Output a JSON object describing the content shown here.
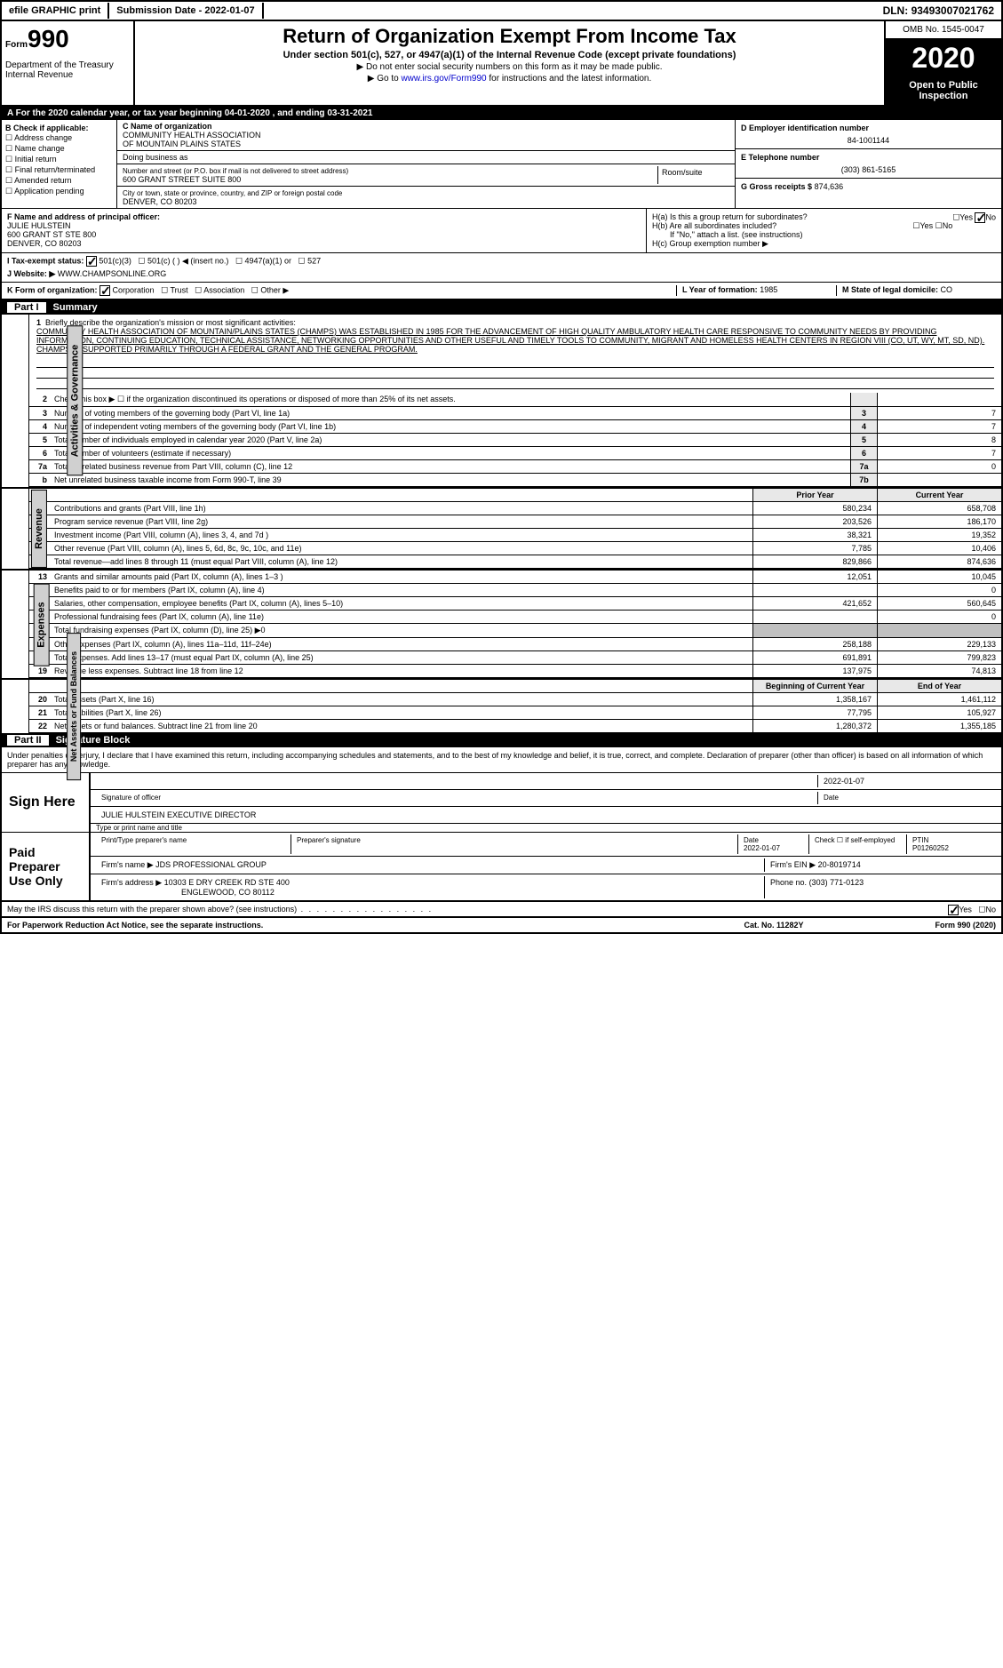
{
  "topbar": {
    "efile": "efile GRAPHIC print",
    "subdate_label": "Submission Date - ",
    "subdate": "2022-01-07",
    "dln_label": "DLN: ",
    "dln": "93493007021762"
  },
  "header": {
    "form_small": "Form",
    "form_num": "990",
    "dept": "Department of the Treasury\nInternal Revenue",
    "title": "Return of Organization Exempt From Income Tax",
    "subtitle": "Under section 501(c), 527, or 4947(a)(1) of the Internal Revenue Code (except private foundations)",
    "arrow1": "▶ Do not enter social security numbers on this form as it may be made public.",
    "arrow2_pre": "▶ Go to ",
    "arrow2_link": "www.irs.gov/Form990",
    "arrow2_post": " for instructions and the latest information.",
    "omb": "OMB No. 1545-0047",
    "year": "2020",
    "open": "Open to Public Inspection"
  },
  "row_a": "A  For the 2020 calendar year, or tax year beginning 04-01-2020    , and ending 03-31-2021",
  "section_b": {
    "label": "B Check if applicable:",
    "opts": [
      "Address change",
      "Name change",
      "Initial return",
      "Final return/terminated",
      "Amended return",
      "Application pending"
    ]
  },
  "section_c": {
    "name_label": "C Name of organization",
    "name1": "COMMUNITY HEALTH ASSOCIATION",
    "name2": "OF MOUNTAIN PLAINS STATES",
    "dba_label": "Doing business as",
    "addr_label": "Number and street (or P.O. box if mail is not delivered to street address)",
    "addr": "600 GRANT STREET SUITE 800",
    "room_label": "Room/suite",
    "city_label": "City or town, state or province, country, and ZIP or foreign postal code",
    "city": "DENVER, CO  80203"
  },
  "section_d": {
    "label": "D Employer identification number",
    "value": "84-1001144"
  },
  "section_e": {
    "label": "E Telephone number",
    "value": "(303) 861-5165"
  },
  "section_g": {
    "label": "G Gross receipts $",
    "value": "874,636"
  },
  "section_f": {
    "label": "F  Name and address of principal officer:",
    "name": "JULIE HULSTEIN",
    "addr1": "600 GRANT ST STE 800",
    "addr2": "DENVER, CO  80203"
  },
  "section_h": {
    "ha": "H(a)  Is this a group return for subordinates?",
    "hb": "H(b)  Are all subordinates included?",
    "hb_note": "If \"No,\" attach a list. (see instructions)",
    "hc": "H(c)  Group exemption number ▶"
  },
  "row_i": {
    "label": "I    Tax-exempt status:",
    "opts": [
      "501(c)(3)",
      "501(c) (  ) ◀ (insert no.)",
      "4947(a)(1) or",
      "527"
    ]
  },
  "row_j": {
    "label": "J   Website: ▶",
    "value": "WWW.CHAMPSONLINE.ORG"
  },
  "row_k": {
    "label": "K Form of organization:",
    "opts": [
      "Corporation",
      "Trust",
      "Association",
      "Other ▶"
    ],
    "l_label": "L Year of formation:",
    "l_val": "1985",
    "m_label": "M State of legal domicile:",
    "m_val": "CO"
  },
  "part1": {
    "label": "Part I",
    "title": "Summary"
  },
  "mission": {
    "num": "1",
    "label": "Briefly describe the organization's mission or most significant activities:",
    "text": "COMMUNITY HEALTH ASSOCIATION OF MOUNTAIN/PLAINS STATES (CHAMPS) WAS ESTABLISHED IN 1985 FOR THE ADVANCEMENT OF HIGH QUALITY AMBULATORY HEALTH CARE RESPONSIVE TO COMMUNITY NEEDS BY PROVIDING INFORMATION, CONTINUING EDUCATION, TECHNICAL ASSISTANCE, NETWORKING OPPORTUNITIES AND OTHER USEFUL AND TIMELY TOOLS TO COMMUNITY, MIGRANT AND HOMELESS HEALTH CENTERS IN REGION VIII (CO, UT, WY, MT, SD, ND). CHAMPS IS SUPPORTED PRIMARILY THROUGH A FEDERAL GRANT AND THE GENERAL PROGRAM."
  },
  "vtabs": {
    "gov": "Activities & Governance",
    "rev": "Revenue",
    "exp": "Expenses",
    "net": "Net Assets or Fund Balances"
  },
  "gov_lines": [
    {
      "n": "2",
      "d": "Check this box ▶ ☐ if the organization discontinued its operations or disposed of more than 25% of its net assets.",
      "box": "",
      "v": ""
    },
    {
      "n": "3",
      "d": "Number of voting members of the governing body (Part VI, line 1a)",
      "box": "3",
      "v": "7"
    },
    {
      "n": "4",
      "d": "Number of independent voting members of the governing body (Part VI, line 1b)",
      "box": "4",
      "v": "7"
    },
    {
      "n": "5",
      "d": "Total number of individuals employed in calendar year 2020 (Part V, line 2a)",
      "box": "5",
      "v": "8"
    },
    {
      "n": "6",
      "d": "Total number of volunteers (estimate if necessary)",
      "box": "6",
      "v": "7"
    },
    {
      "n": "7a",
      "d": "Total unrelated business revenue from Part VIII, column (C), line 12",
      "box": "7a",
      "v": "0"
    },
    {
      "n": "b",
      "d": "Net unrelated business taxable income from Form 990-T, line 39",
      "box": "7b",
      "v": ""
    }
  ],
  "rev_hdr": {
    "prior": "Prior Year",
    "curr": "Current Year"
  },
  "rev_lines": [
    {
      "n": "8",
      "d": "Contributions and grants (Part VIII, line 1h)",
      "p": "580,234",
      "c": "658,708"
    },
    {
      "n": "9",
      "d": "Program service revenue (Part VIII, line 2g)",
      "p": "203,526",
      "c": "186,170"
    },
    {
      "n": "10",
      "d": "Investment income (Part VIII, column (A), lines 3, 4, and 7d )",
      "p": "38,321",
      "c": "19,352"
    },
    {
      "n": "11",
      "d": "Other revenue (Part VIII, column (A), lines 5, 6d, 8c, 9c, 10c, and 11e)",
      "p": "7,785",
      "c": "10,406"
    },
    {
      "n": "12",
      "d": "Total revenue—add lines 8 through 11 (must equal Part VIII, column (A), line 12)",
      "p": "829,866",
      "c": "874,636"
    }
  ],
  "exp_lines": [
    {
      "n": "13",
      "d": "Grants and similar amounts paid (Part IX, column (A), lines 1–3 )",
      "p": "12,051",
      "c": "10,045"
    },
    {
      "n": "14",
      "d": "Benefits paid to or for members (Part IX, column (A), line 4)",
      "p": "",
      "c": "0"
    },
    {
      "n": "15",
      "d": "Salaries, other compensation, employee benefits (Part IX, column (A), lines 5–10)",
      "p": "421,652",
      "c": "560,645"
    },
    {
      "n": "16a",
      "d": "Professional fundraising fees (Part IX, column (A), line 11e)",
      "p": "",
      "c": "0"
    },
    {
      "n": "b",
      "d": "Total fundraising expenses (Part IX, column (D), line 25) ▶0",
      "p": "shade",
      "c": "shade"
    },
    {
      "n": "17",
      "d": "Other expenses (Part IX, column (A), lines 11a–11d, 11f–24e)",
      "p": "258,188",
      "c": "229,133"
    },
    {
      "n": "18",
      "d": "Total expenses. Add lines 13–17 (must equal Part IX, column (A), line 25)",
      "p": "691,891",
      "c": "799,823"
    },
    {
      "n": "19",
      "d": "Revenue less expenses. Subtract line 18 from line 12",
      "p": "137,975",
      "c": "74,813"
    }
  ],
  "net_hdr": {
    "prior": "Beginning of Current Year",
    "curr": "End of Year"
  },
  "net_lines": [
    {
      "n": "20",
      "d": "Total assets (Part X, line 16)",
      "p": "1,358,167",
      "c": "1,461,112"
    },
    {
      "n": "21",
      "d": "Total liabilities (Part X, line 26)",
      "p": "77,795",
      "c": "105,927"
    },
    {
      "n": "22",
      "d": "Net assets or fund balances. Subtract line 21 from line 20",
      "p": "1,280,372",
      "c": "1,355,185"
    }
  ],
  "part2": {
    "label": "Part II",
    "title": "Signature Block"
  },
  "sig": {
    "decl": "Under penalties of perjury, I declare that I have examined this return, including accompanying schedules and statements, and to the best of my knowledge and belief, it is true, correct, and complete. Declaration of preparer (other than officer) is based on all information of which preparer has any knowledge.",
    "sign_label": "Sign Here",
    "sig_officer": "Signature of officer",
    "sig_date": "2022-01-07",
    "date_label": "Date",
    "name_title": "JULIE HULSTEIN  EXECUTIVE DIRECTOR",
    "type_label": "Type or print name and title",
    "paid_label": "Paid Preparer Use Only",
    "prep_name_label": "Print/Type preparer's name",
    "prep_sig_label": "Preparer's signature",
    "prep_date": "2022-01-07",
    "check_self": "Check ☐ if self-employed",
    "ptin_label": "PTIN",
    "ptin": "P01260252",
    "firm_name_label": "Firm's name    ▶",
    "firm_name": "JDS PROFESSIONAL GROUP",
    "firm_ein_label": "Firm's EIN ▶",
    "firm_ein": "20-8019714",
    "firm_addr_label": "Firm's address ▶",
    "firm_addr1": "10303 E DRY CREEK RD STE 400",
    "firm_addr2": "ENGLEWOOD, CO  80112",
    "phone_label": "Phone no.",
    "phone": "(303) 771-0123",
    "may_irs": "May the IRS discuss this return with the preparer shown above? (see instructions)"
  },
  "footer": {
    "left": "For Paperwork Reduction Act Notice, see the separate instructions.",
    "mid": "Cat. No. 11282Y",
    "right": "Form 990 (2020)"
  }
}
